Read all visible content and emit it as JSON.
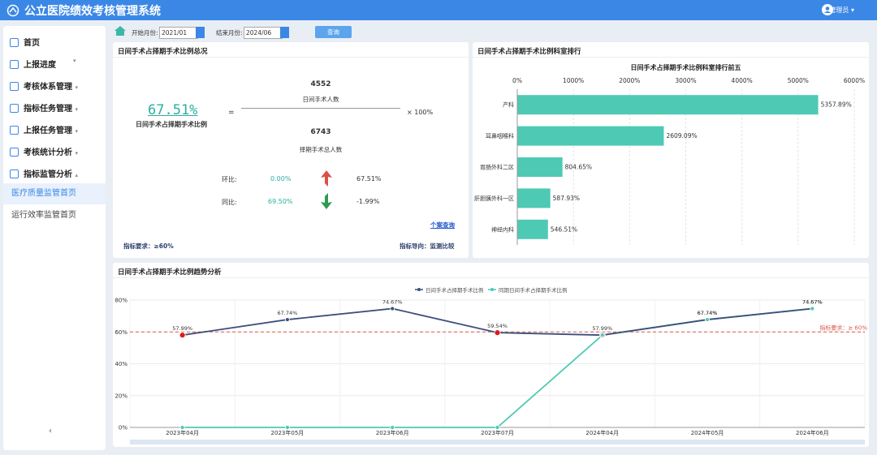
{
  "header": {
    "title": "公立医院绩效考核管理系统",
    "user": "管理员"
  },
  "sidebar": {
    "items": [
      "首页",
      "上报进度",
      "考核体系管理",
      "指标任务管理",
      "上报任务管理",
      "考核统计分析",
      "指标监管分析"
    ],
    "subitems": [
      "医疗质量监管首页",
      "运行效率监管首页"
    ]
  },
  "filter": {
    "start_label": "开始月份:",
    "start_value": "2021/01",
    "end_label": "结束月份:",
    "end_value": "2024/06",
    "button": "查询"
  },
  "summary": {
    "title": "日间手术占择期手术比例总况",
    "ratio": "67.51%",
    "ratio_label": "日间手术占择期手术比例",
    "equals": "=",
    "numerator": 4552,
    "numerator_label": "日间手术人数",
    "denominator": 6743,
    "denominator_label": "择期手术总人数",
    "multiplier": "× 100%",
    "hb_label": "环比:",
    "hb_value": "0.00%",
    "hb_change": "67.51%",
    "tb_label": "同比:",
    "tb_value": "69.50%",
    "tb_change": "-1.99%",
    "link": "个案查询",
    "requirement": "指标要求：≥60%",
    "direction": "指标导向：监测比较"
  },
  "chart_data": [
    {
      "type": "hbar",
      "panel_title": "日间手术占择期手术比例科室排行",
      "title": "日间手术占择期手术比例科室排行前五",
      "categories": [
        "产科",
        "耳鼻咽喉科",
        "胃肠外科二区",
        "肝胆胰外科一区",
        "神经内科"
      ],
      "values": [
        5357.89,
        2609.09,
        804.65,
        587.93,
        546.51
      ],
      "value_labels": [
        "5357.89%",
        "2609.09%",
        "804.65%",
        "587.93%",
        "546.51%"
      ],
      "color": "#4ec9b4",
      "xlim": [
        0,
        6000
      ],
      "xticks": [
        {
          "value": 0,
          "label": "0%"
        },
        {
          "value": 1000,
          "label": "1000%"
        },
        {
          "value": 2000,
          "label": "2000%"
        },
        {
          "value": 3000,
          "label": "3000%"
        },
        {
          "value": 4000,
          "label": "4000%"
        },
        {
          "value": 5000,
          "label": "5000%"
        },
        {
          "value": 6000,
          "label": "6000%"
        }
      ],
      "grid": true
    },
    {
      "type": "line",
      "panel_title": "日间手术占择期手术比例趋势分析",
      "categories": [
        "2023年04月",
        "2023年05月",
        "2023年06月",
        "2023年07月",
        "2024年04月",
        "2024年05月",
        "2024年06月"
      ],
      "series": [
        {
          "name": "日间手术占择期手术比例",
          "color": "#3d4f7d",
          "values": [
            57.99,
            67.74,
            74.67,
            59.54,
            57.99,
            67.74,
            74.67
          ],
          "value_labels": [
            "57.99%",
            "67.74%",
            "74.67%",
            "59.54%",
            "57.99%",
            "67.74%",
            "74.67%"
          ]
        },
        {
          "name": "同期日间手术占择期手术比例",
          "color": "#4ec9b4",
          "values": [
            0,
            0,
            0,
            0,
            57.99,
            67.74,
            74.67
          ],
          "value_labels": [
            null,
            null,
            null,
            null,
            null,
            "67.74%",
            "74.67%"
          ]
        }
      ],
      "threshold": {
        "value": 60,
        "label": "指标要求：≥ 60%",
        "color": "#e05a4e"
      },
      "below_color": "#e01a1a",
      "ylim": [
        0,
        80
      ],
      "yticks": [
        {
          "value": 0,
          "label": "0%"
        },
        {
          "value": 20,
          "label": "20%"
        },
        {
          "value": 40,
          "label": "40%"
        },
        {
          "value": 60,
          "label": "60%"
        },
        {
          "value": 80,
          "label": "80%"
        }
      ],
      "grid": true,
      "legend": "top"
    }
  ]
}
